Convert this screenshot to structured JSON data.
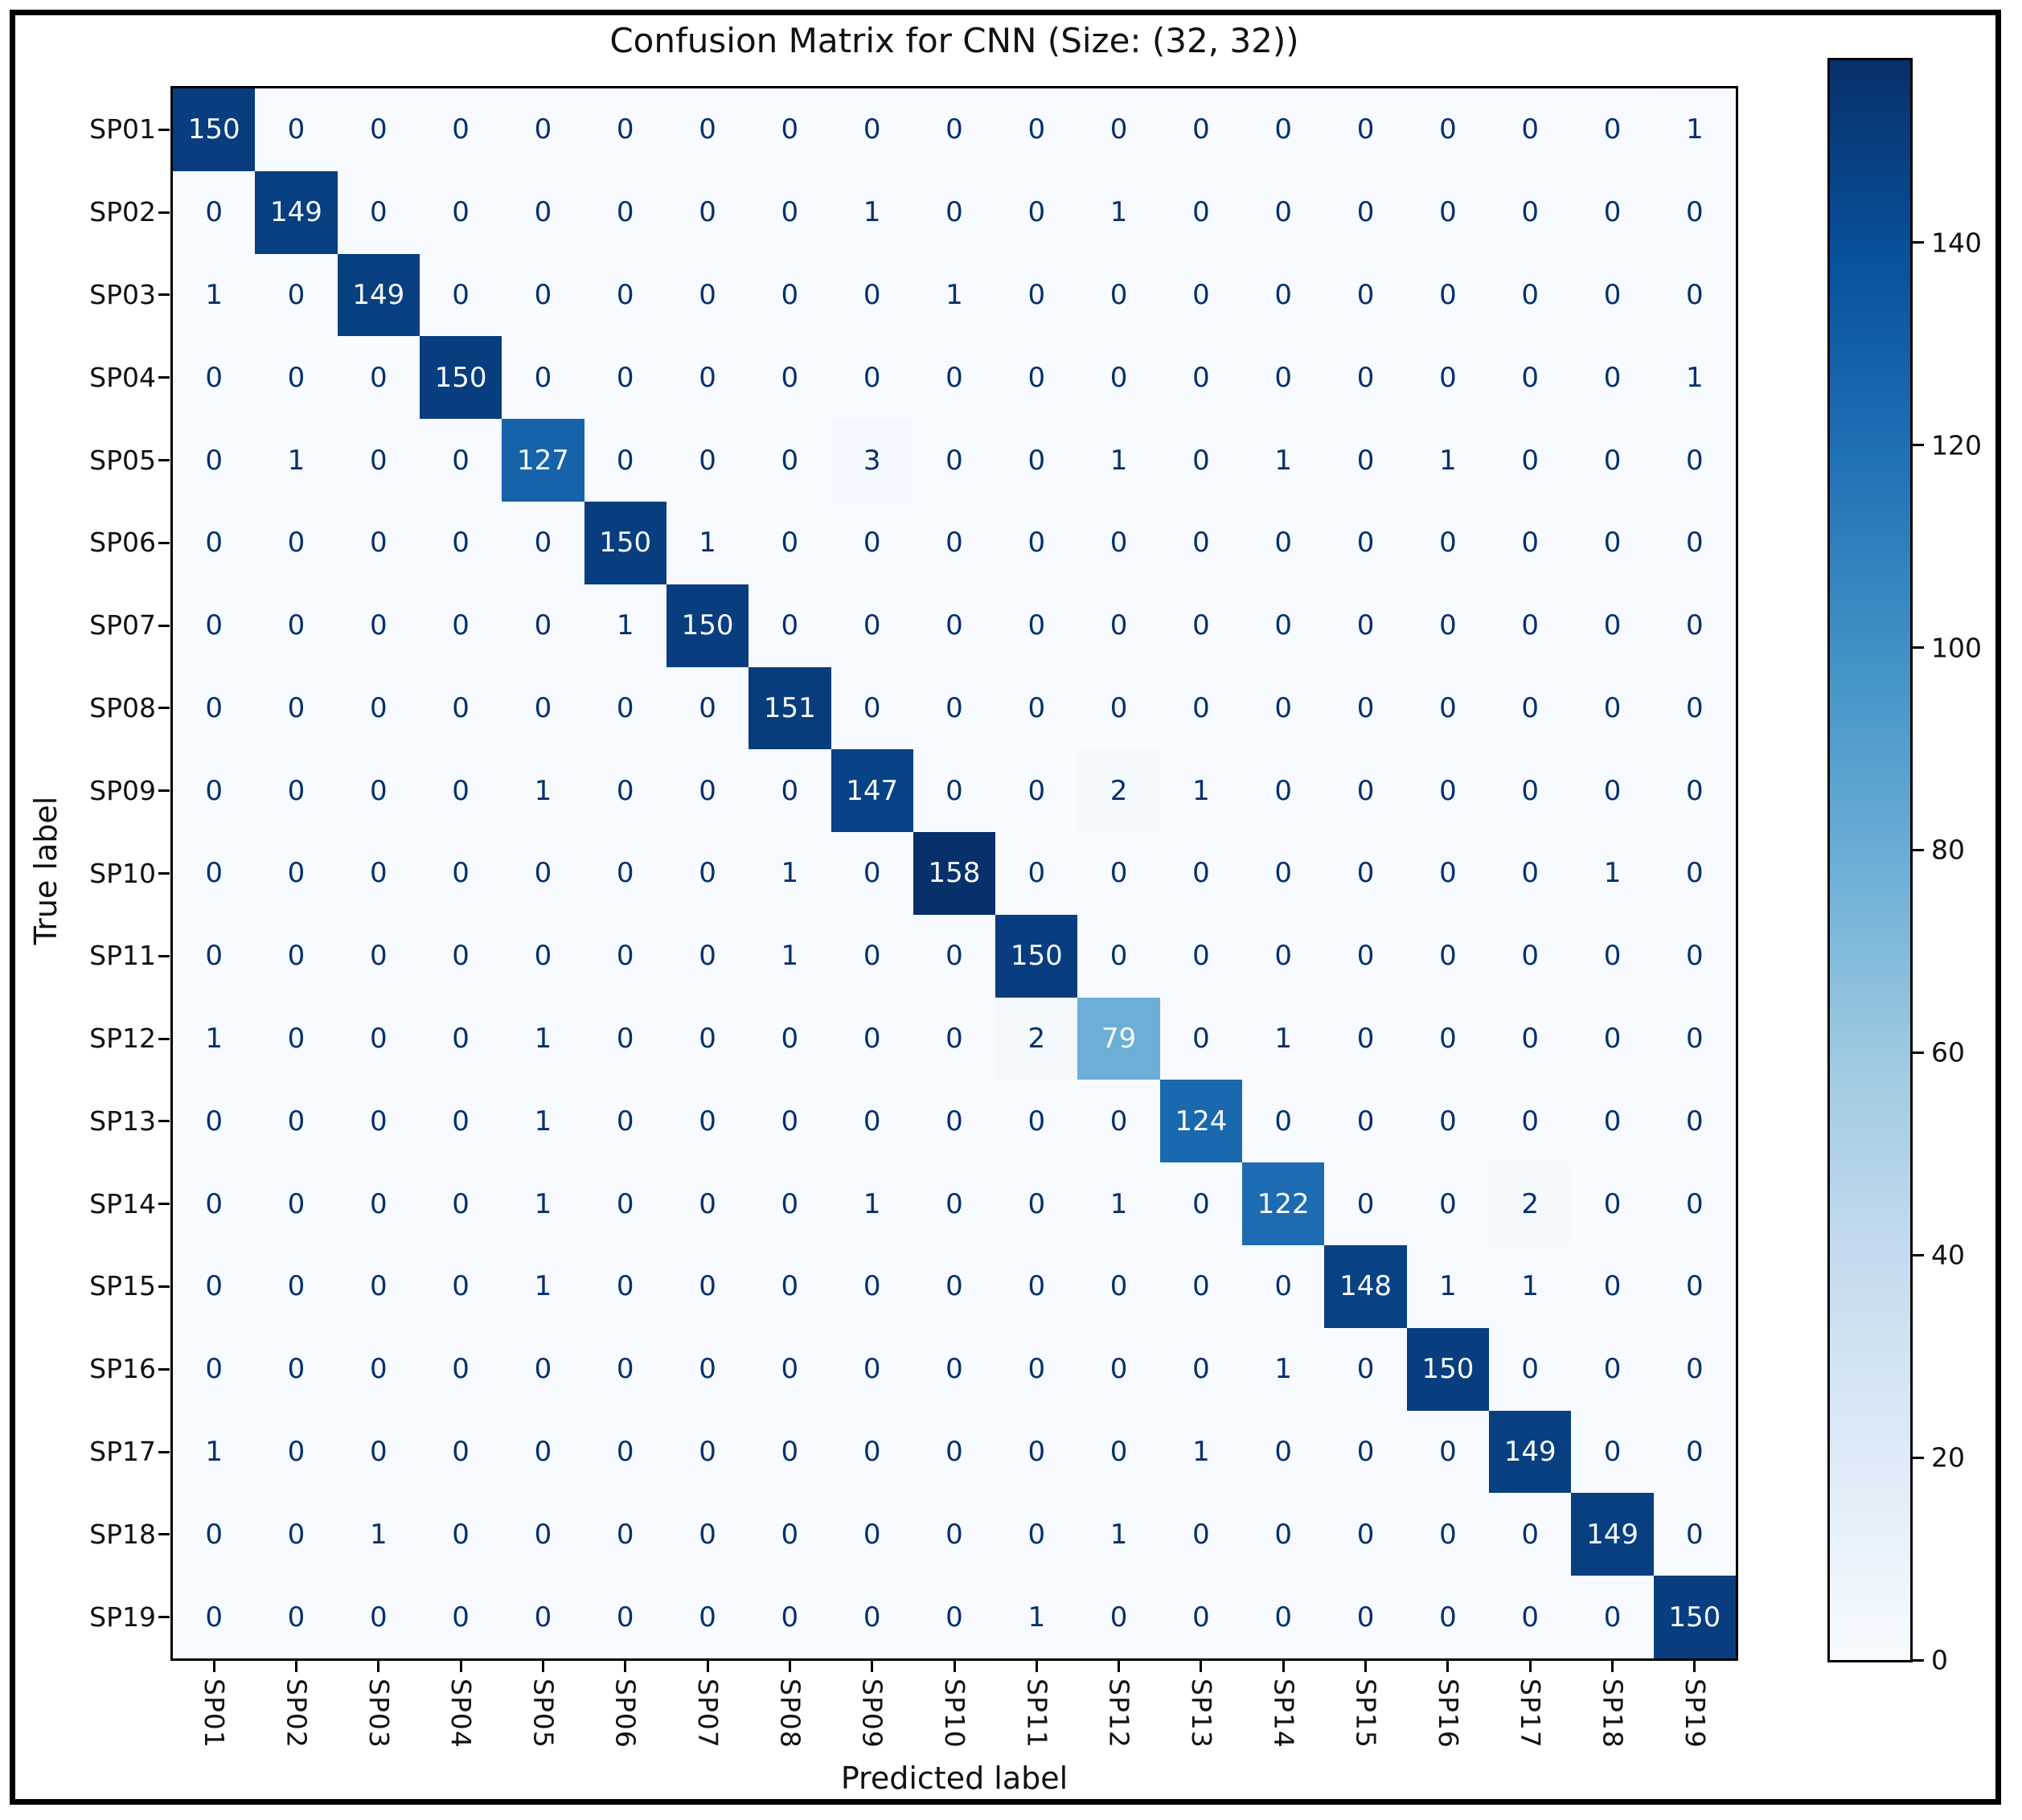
{
  "chart_data": {
    "type": "heatmap",
    "title": "Confusion Matrix for CNN (Size: (32, 32))",
    "xlabel": "Predicted label",
    "ylabel": "True label",
    "categories": [
      "SP01",
      "SP02",
      "SP03",
      "SP04",
      "SP05",
      "SP06",
      "SP07",
      "SP08",
      "SP09",
      "SP10",
      "SP11",
      "SP12",
      "SP13",
      "SP14",
      "SP15",
      "SP16",
      "SP17",
      "SP18",
      "SP19"
    ],
    "matrix": [
      [
        150,
        0,
        0,
        0,
        0,
        0,
        0,
        0,
        0,
        0,
        0,
        0,
        0,
        0,
        0,
        0,
        0,
        0,
        1
      ],
      [
        0,
        149,
        0,
        0,
        0,
        0,
        0,
        0,
        1,
        0,
        0,
        1,
        0,
        0,
        0,
        0,
        0,
        0,
        0
      ],
      [
        1,
        0,
        149,
        0,
        0,
        0,
        0,
        0,
        0,
        1,
        0,
        0,
        0,
        0,
        0,
        0,
        0,
        0,
        0
      ],
      [
        0,
        0,
        0,
        150,
        0,
        0,
        0,
        0,
        0,
        0,
        0,
        0,
        0,
        0,
        0,
        0,
        0,
        0,
        1
      ],
      [
        0,
        1,
        0,
        0,
        127,
        0,
        0,
        0,
        3,
        0,
        0,
        1,
        0,
        1,
        0,
        1,
        0,
        0,
        0
      ],
      [
        0,
        0,
        0,
        0,
        0,
        150,
        1,
        0,
        0,
        0,
        0,
        0,
        0,
        0,
        0,
        0,
        0,
        0,
        0
      ],
      [
        0,
        0,
        0,
        0,
        0,
        1,
        150,
        0,
        0,
        0,
        0,
        0,
        0,
        0,
        0,
        0,
        0,
        0,
        0
      ],
      [
        0,
        0,
        0,
        0,
        0,
        0,
        0,
        151,
        0,
        0,
        0,
        0,
        0,
        0,
        0,
        0,
        0,
        0,
        0
      ],
      [
        0,
        0,
        0,
        0,
        1,
        0,
        0,
        0,
        147,
        0,
        0,
        2,
        1,
        0,
        0,
        0,
        0,
        0,
        0
      ],
      [
        0,
        0,
        0,
        0,
        0,
        0,
        0,
        1,
        0,
        158,
        0,
        0,
        0,
        0,
        0,
        0,
        0,
        1,
        0
      ],
      [
        0,
        0,
        0,
        0,
        0,
        0,
        0,
        1,
        0,
        0,
        150,
        0,
        0,
        0,
        0,
        0,
        0,
        0,
        0
      ],
      [
        1,
        0,
        0,
        0,
        1,
        0,
        0,
        0,
        0,
        0,
        2,
        79,
        0,
        1,
        0,
        0,
        0,
        0,
        0
      ],
      [
        0,
        0,
        0,
        0,
        1,
        0,
        0,
        0,
        0,
        0,
        0,
        0,
        124,
        0,
        0,
        0,
        0,
        0,
        0
      ],
      [
        0,
        0,
        0,
        0,
        1,
        0,
        0,
        0,
        1,
        0,
        0,
        1,
        0,
        122,
        0,
        0,
        2,
        0,
        0
      ],
      [
        0,
        0,
        0,
        0,
        1,
        0,
        0,
        0,
        0,
        0,
        0,
        0,
        0,
        0,
        148,
        1,
        1,
        0,
        0
      ],
      [
        0,
        0,
        0,
        0,
        0,
        0,
        0,
        0,
        0,
        0,
        0,
        0,
        0,
        1,
        0,
        150,
        0,
        0,
        0
      ],
      [
        1,
        0,
        0,
        0,
        0,
        0,
        0,
        0,
        0,
        0,
        0,
        0,
        1,
        0,
        0,
        0,
        149,
        0,
        0
      ],
      [
        0,
        0,
        1,
        0,
        0,
        0,
        0,
        0,
        0,
        0,
        0,
        1,
        0,
        0,
        0,
        0,
        0,
        149,
        0
      ],
      [
        0,
        0,
        0,
        0,
        0,
        0,
        0,
        0,
        0,
        0,
        1,
        0,
        0,
        0,
        0,
        0,
        0,
        0,
        150
      ]
    ],
    "vmin": 0,
    "vmax": 158,
    "colormap": "Blues",
    "colormap_anchors": [
      "#f7fbff",
      "#deebf7",
      "#c6dbef",
      "#9ecae1",
      "#6baed6",
      "#4292c6",
      "#2171b5",
      "#08519c",
      "#08306b"
    ],
    "text_color_dark": "#08306b",
    "text_color_light": "#f7fbff",
    "colorbar_ticks": [
      0,
      20,
      40,
      60,
      80,
      100,
      120,
      140
    ],
    "legend_position": "right-colorbar",
    "grid": false
  }
}
